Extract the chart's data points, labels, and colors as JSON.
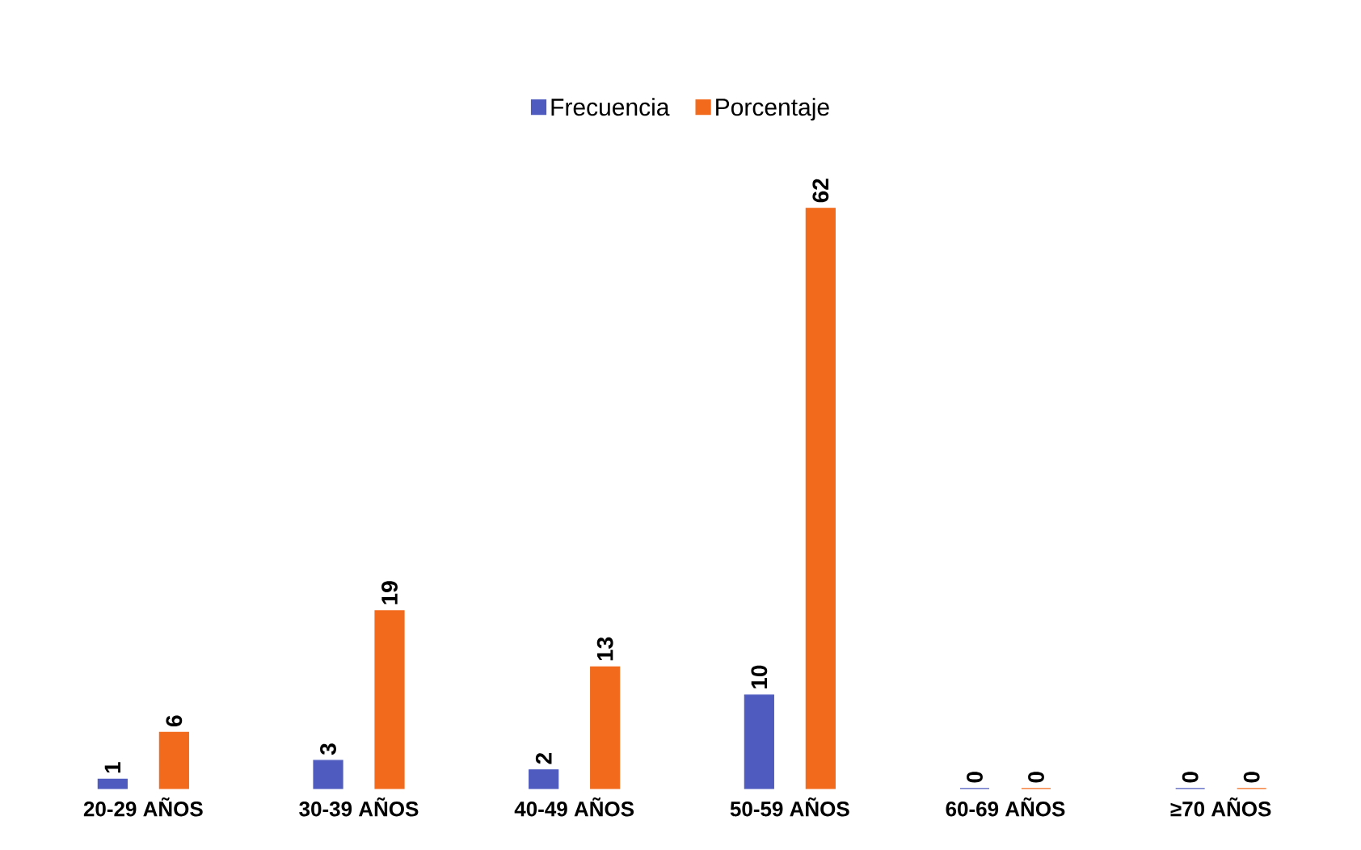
{
  "chart_data": {
    "type": "bar",
    "categories": [
      "20-29 AÑOS",
      "30-39 AÑOS",
      "40-49 AÑOS",
      "50-59 AÑOS",
      "60-69 AÑOS",
      "≥70 AÑOS"
    ],
    "series": [
      {
        "name": "Frecuencia",
        "color": "#4f5bbf",
        "values": [
          1,
          3,
          2,
          10,
          0,
          0
        ]
      },
      {
        "name": "Porcentaje",
        "color": "#f26b1d",
        "values": [
          6,
          19,
          13,
          62,
          0,
          0
        ]
      }
    ],
    "data_labels": true,
    "legend": "top",
    "grid": false
  }
}
